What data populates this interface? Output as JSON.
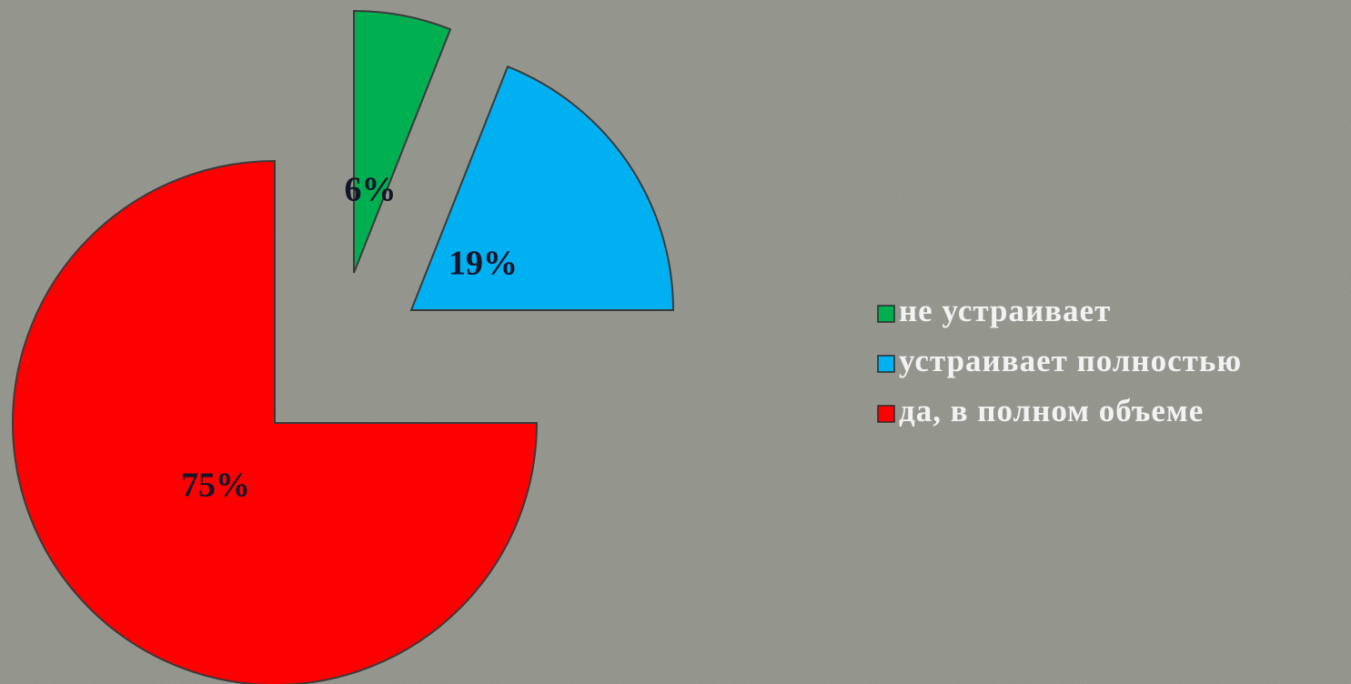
{
  "chart_data": {
    "type": "pie",
    "categories": [
      "не устраивает",
      "устраивает полностью",
      "да, в полном объеме"
    ],
    "values": [
      6,
      19,
      75
    ],
    "value_labels": [
      "6%",
      "19%",
      "75%"
    ],
    "colors": [
      "#00b050",
      "#00b0f0",
      "#ff0000"
    ],
    "legend": "right"
  }
}
